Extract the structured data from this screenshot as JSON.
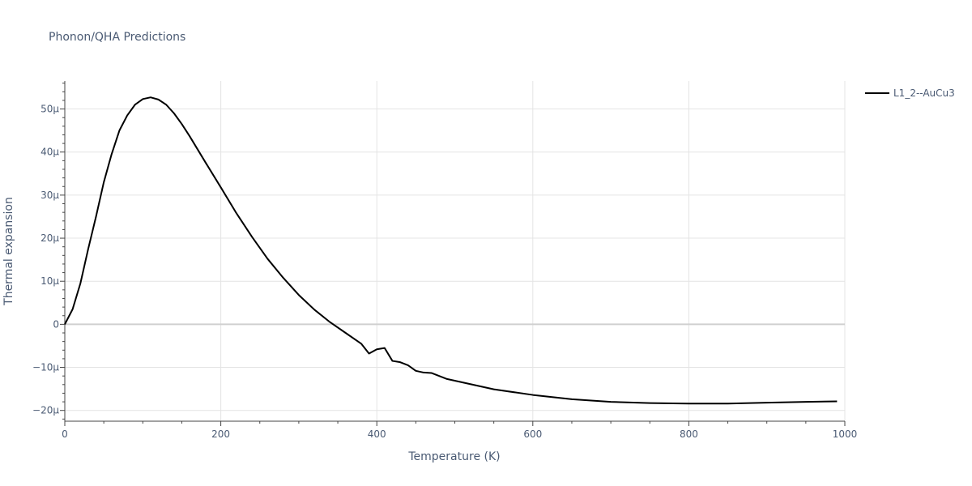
{
  "chart_data": {
    "type": "line",
    "title": "Phonon/QHA Predictions",
    "xlabel": "Temperature (K)",
    "ylabel": "Thermal expansion",
    "xlim": [
      0,
      1000
    ],
    "ylim": [
      -2.25e-05,
      5.65e-05
    ],
    "x_ticks": [
      0,
      200,
      400,
      600,
      800,
      1000
    ],
    "x_tick_labels": [
      "0",
      "200",
      "400",
      "600",
      "800",
      "1000"
    ],
    "y_ticks": [
      -2e-05,
      -1e-05,
      0,
      1e-05,
      2e-05,
      3e-05,
      4e-05,
      5e-05
    ],
    "y_tick_labels": [
      "−20µ",
      "−10µ",
      "0",
      "10µ",
      "20µ",
      "30µ",
      "40µ",
      "50µ"
    ],
    "grid": true,
    "legend": "top-right",
    "series": [
      {
        "name": "L1_2--AuCu3",
        "color": "#000000",
        "x": [
          0,
          10,
          20,
          30,
          40,
          50,
          60,
          70,
          80,
          90,
          100,
          110,
          120,
          130,
          140,
          150,
          160,
          180,
          200,
          220,
          240,
          260,
          280,
          300,
          320,
          340,
          360,
          380,
          390,
          400,
          410,
          420,
          430,
          440,
          450,
          460,
          470,
          490,
          520,
          550,
          600,
          650,
          700,
          750,
          800,
          850,
          900,
          950,
          990
        ],
        "y": [
          0,
          3.5e-06,
          9.5e-06,
          1.75e-05,
          2.5e-05,
          3.3e-05,
          3.95e-05,
          4.5e-05,
          4.85e-05,
          5.1e-05,
          5.23e-05,
          5.27e-05,
          5.22e-05,
          5.1e-05,
          4.9e-05,
          4.65e-05,
          4.37e-05,
          3.77e-05,
          3.18e-05,
          2.58e-05,
          2.03e-05,
          1.52e-05,
          1.08e-05,
          6.8e-06,
          3.4e-06,
          5e-07,
          -2e-06,
          -4.5e-06,
          -6.8e-06,
          -5.8e-06,
          -5.5e-06,
          -8.5e-06,
          -8.8e-06,
          -9.5e-06,
          -1.08e-05,
          -1.12e-05,
          -1.13e-05,
          -1.27e-05,
          -1.39e-05,
          -1.51e-05,
          -1.64e-05,
          -1.74e-05,
          -1.8e-05,
          -1.83e-05,
          -1.84e-05,
          -1.84e-05,
          -1.82e-05,
          -1.8e-05,
          -1.79e-05
        ]
      }
    ]
  }
}
